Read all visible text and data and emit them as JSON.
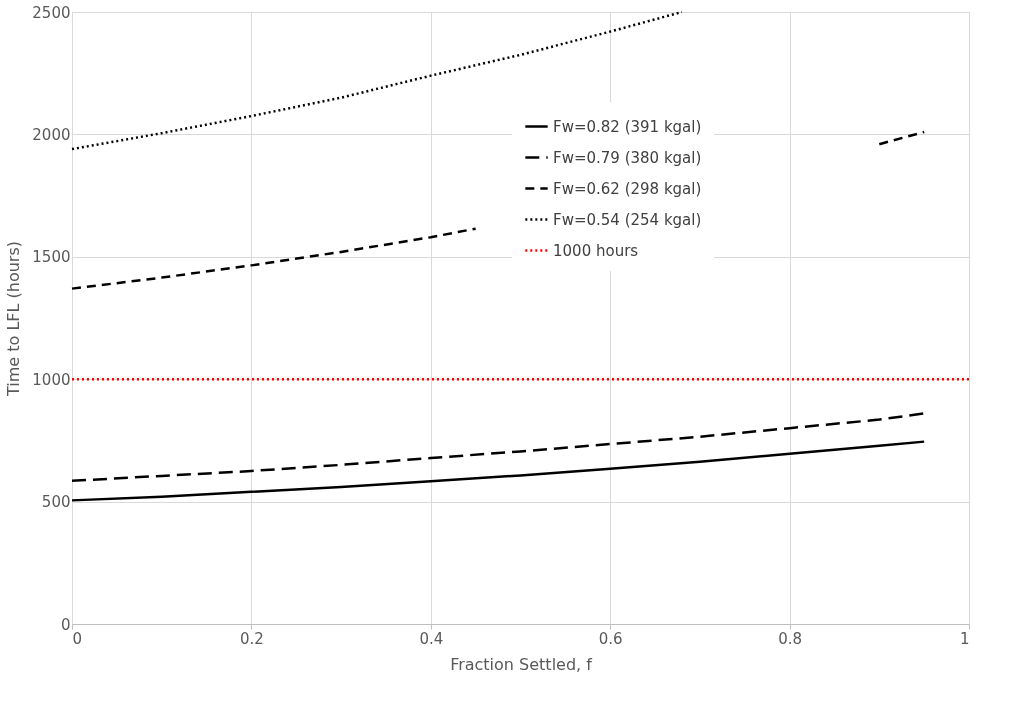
{
  "chart_data": {
    "type": "line",
    "xlabel": "Fraction Settled, f",
    "ylabel": "Time to LFL (hours)",
    "xlim": [
      0,
      1
    ],
    "xticks": [
      0,
      0.2,
      0.4,
      0.6,
      0.8,
      1
    ],
    "ylim": [
      0,
      2500
    ],
    "yticks": [
      0,
      500,
      1000,
      1500,
      2000,
      2500
    ],
    "grid": true,
    "legend": "top right",
    "marker": "none",
    "series": [
      {
        "name": "Fw=0.82 (391 kgal)",
        "color": "#000000",
        "line_style": "solid",
        "x": [
          0,
          0.1,
          0.2,
          0.3,
          0.4,
          0.5,
          0.6,
          0.7,
          0.8,
          0.9,
          0.95
        ],
        "values": [
          505,
          520,
          540,
          560,
          583,
          607,
          634,
          663,
          695,
          728,
          745
        ]
      },
      {
        "name": "Fw=0.79 (380 kgal)",
        "color": "#000000",
        "line_style": "dashed",
        "x": [
          0,
          0.1,
          0.2,
          0.3,
          0.4,
          0.5,
          0.6,
          0.7,
          0.8,
          0.9,
          0.95
        ],
        "values": [
          585,
          605,
          625,
          650,
          678,
          705,
          735,
          765,
          800,
          835,
          860
        ]
      },
      {
        "name": "Fw=0.62 (298 kgal)",
        "color": "#000000",
        "line_style": "dashed",
        "x": [
          0,
          0.1,
          0.2,
          0.3,
          0.4,
          0.45,
          0.5,
          0.6,
          0.7,
          0.8,
          0.85,
          0.9,
          0.95
        ],
        "values": [
          1370,
          1415,
          1465,
          1520,
          1580,
          1615,
          null,
          null,
          null,
          null,
          null,
          1960,
          2010
        ]
      },
      {
        "name": "Fw=0.54 (254 kgal)",
        "color": "#000000",
        "line_style": "dotted",
        "x": [
          0,
          0.1,
          0.2,
          0.3,
          0.4,
          0.5,
          0.6,
          0.68
        ],
        "values": [
          1940,
          2005,
          2075,
          2150,
          2240,
          2325,
          2420,
          2500
        ]
      }
    ],
    "ref_lines": [
      {
        "axis": "y",
        "value": 1000,
        "label": "1000 hours",
        "color": "#ff0000",
        "line_style": "dotted"
      }
    ]
  }
}
